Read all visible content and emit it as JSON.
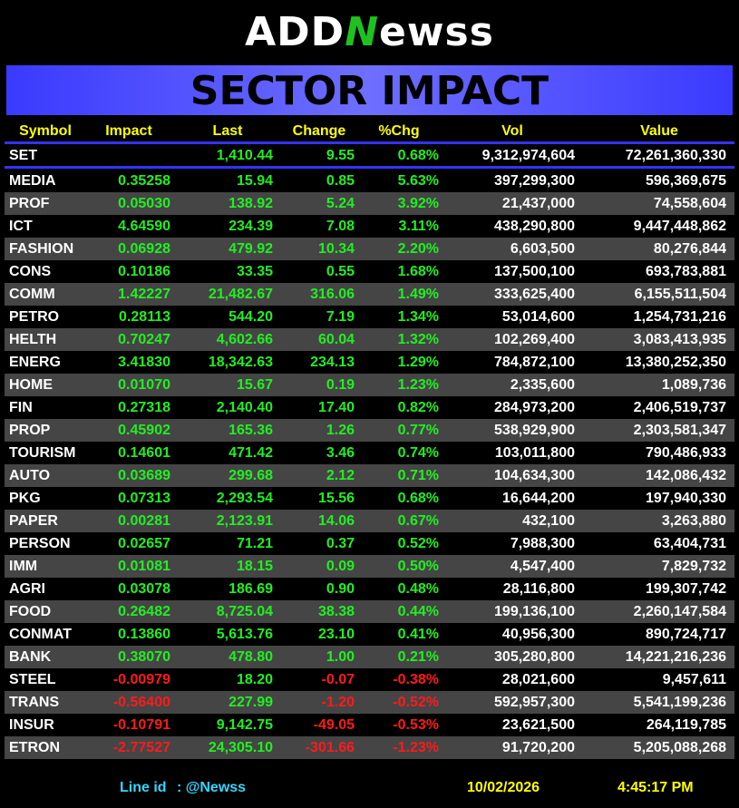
{
  "header": {
    "logo": [
      "ADD",
      "N",
      "ewss"
    ],
    "title": "SECTOR IMPACT"
  },
  "table": {
    "columns": [
      "Symbol",
      "Impact",
      "Last",
      "Change",
      "%Chg",
      "Vol",
      "Value"
    ],
    "set": {
      "symbol": "SET",
      "last": "1,410.44",
      "change": "9.55",
      "pct": "0.68%",
      "vol": "9,312,974,604",
      "value": "72,261,360,330"
    },
    "rows": [
      [
        "MEDIA",
        "0.35258",
        "15.94",
        "0.85",
        "5.63%",
        "397,299,300",
        "596,369,675"
      ],
      [
        "PROF",
        "0.05030",
        "138.92",
        "5.24",
        "3.92%",
        "21,437,000",
        "74,558,604"
      ],
      [
        "ICT",
        "4.64590",
        "234.39",
        "7.08",
        "3.11%",
        "438,290,800",
        "9,447,448,862"
      ],
      [
        "FASHION",
        "0.06928",
        "479.92",
        "10.34",
        "2.20%",
        "6,603,500",
        "80,276,844"
      ],
      [
        "CONS",
        "0.10186",
        "33.35",
        "0.55",
        "1.68%",
        "137,500,100",
        "693,783,881"
      ],
      [
        "COMM",
        "1.42227",
        "21,482.67",
        "316.06",
        "1.49%",
        "333,625,400",
        "6,155,511,504"
      ],
      [
        "PETRO",
        "0.28113",
        "544.20",
        "7.19",
        "1.34%",
        "53,014,600",
        "1,254,731,216"
      ],
      [
        "HELTH",
        "0.70247",
        "4,602.66",
        "60.04",
        "1.32%",
        "102,269,400",
        "3,083,413,935"
      ],
      [
        "ENERG",
        "3.41830",
        "18,342.63",
        "234.13",
        "1.29%",
        "784,872,100",
        "13,380,252,350"
      ],
      [
        "HOME",
        "0.01070",
        "15.67",
        "0.19",
        "1.23%",
        "2,335,600",
        "1,089,736"
      ],
      [
        "FIN",
        "0.27318",
        "2,140.40",
        "17.40",
        "0.82%",
        "284,973,200",
        "2,406,519,737"
      ],
      [
        "PROP",
        "0.45902",
        "165.36",
        "1.26",
        "0.77%",
        "538,929,900",
        "2,303,581,347"
      ],
      [
        "TOURISM",
        "0.14601",
        "471.42",
        "3.46",
        "0.74%",
        "103,011,800",
        "790,486,933"
      ],
      [
        "AUTO",
        "0.03689",
        "299.68",
        "2.12",
        "0.71%",
        "104,634,300",
        "142,086,432"
      ],
      [
        "PKG",
        "0.07313",
        "2,293.54",
        "15.56",
        "0.68%",
        "16,644,200",
        "197,940,330"
      ],
      [
        "PAPER",
        "0.00281",
        "2,123.91",
        "14.06",
        "0.67%",
        "432,100",
        "3,263,880"
      ],
      [
        "PERSON",
        "0.02657",
        "71.21",
        "0.37",
        "0.52%",
        "7,988,300",
        "63,404,731"
      ],
      [
        "IMM",
        "0.01081",
        "18.15",
        "0.09",
        "0.50%",
        "4,547,400",
        "7,829,732"
      ],
      [
        "AGRI",
        "0.03078",
        "186.69",
        "0.90",
        "0.48%",
        "28,116,800",
        "199,307,742"
      ],
      [
        "FOOD",
        "0.26482",
        "8,725.04",
        "38.38",
        "0.44%",
        "199,136,100",
        "2,260,147,584"
      ],
      [
        "CONMAT",
        "0.13860",
        "5,613.76",
        "23.10",
        "0.41%",
        "40,956,300",
        "890,724,717"
      ],
      [
        "BANK",
        "0.38070",
        "478.80",
        "1.00",
        "0.21%",
        "305,280,800",
        "14,221,216,236"
      ],
      [
        "STEEL",
        "-0.00979",
        "18.20",
        "-0.07",
        "-0.38%",
        "28,021,600",
        "9,457,611"
      ],
      [
        "TRANS",
        "-0.56400",
        "227.99",
        "-1.20",
        "-0.52%",
        "592,957,300",
        "5,541,199,236"
      ],
      [
        "INSUR",
        "-0.10791",
        "9,142.75",
        "-49.05",
        "-0.53%",
        "23,621,500",
        "264,119,785"
      ],
      [
        "ETRON",
        "-2.77527",
        "24,305.10",
        "-301.66",
        "-1.23%",
        "91,720,200",
        "5,205,088,268"
      ]
    ]
  },
  "footer": {
    "line_label": "Line id",
    "line_id": ": @Newss",
    "date": "10/02/2026",
    "time": "4:45:17 PM"
  }
}
